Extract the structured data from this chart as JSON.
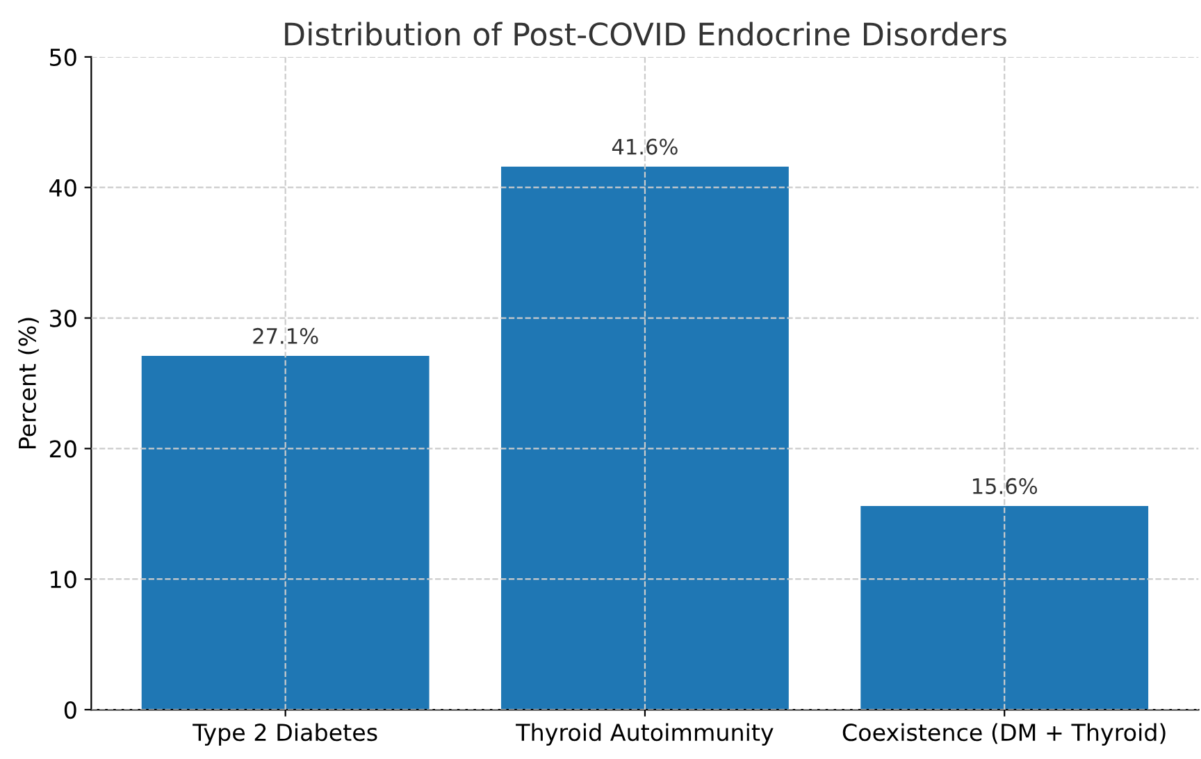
{
  "chart_data": {
    "type": "bar",
    "title": "Distribution of Post-COVID Endocrine Disorders",
    "ylabel": "Percent (%)",
    "categories": [
      "Type 2 Diabetes",
      "Thyroid Autoimmunity",
      "Coexistence (DM + Thyroid)"
    ],
    "values": [
      27.1,
      41.6,
      15.6
    ],
    "color": "#1f77b4",
    "value_labels": [
      "27.1%",
      "41.6%",
      "15.6%"
    ],
    "ylim": [
      0,
      50
    ],
    "yticks": [
      0,
      10,
      20,
      30,
      40,
      50
    ],
    "grid": true
  }
}
